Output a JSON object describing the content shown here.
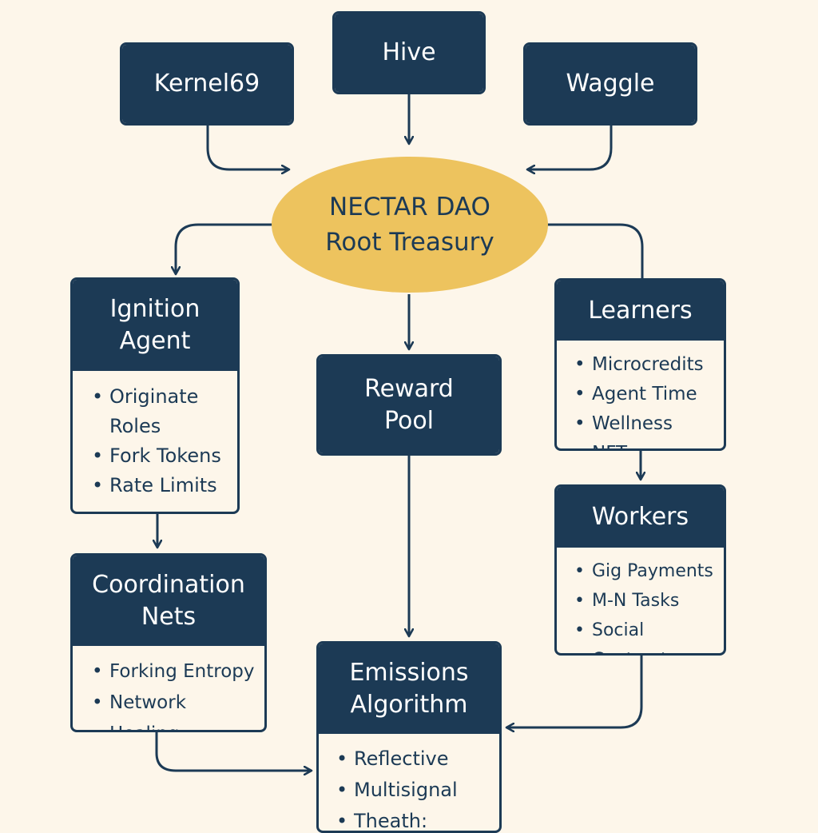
{
  "colors": {
    "navy": "#1c3a55",
    "gold": "#edc35e",
    "background": "#fdf6ea"
  },
  "root": {
    "line1": "NECTAR DAO",
    "line2": "Root Treasury"
  },
  "sources": {
    "kernel": "Kernel69",
    "hive": "Hive",
    "waggle": "Waggle"
  },
  "ignition": {
    "title_line1": "Ignition",
    "title_line2": "Agent",
    "items": [
      "Originate Roles",
      "Fork Tokens",
      "Rate Limits"
    ]
  },
  "reward": {
    "title_line1": "Reward",
    "title_line2": "Pool"
  },
  "learners": {
    "title": "Learners",
    "items": [
      "Microcredits",
      "Agent Time",
      "Wellness NFTs"
    ]
  },
  "workers": {
    "title": "Workers",
    "items": [
      "Gig Payments",
      "M-N Tasks",
      "Social Contracts"
    ]
  },
  "coordination": {
    "title_line1": "Coordination",
    "title_line2": "Nets",
    "items": [
      "Forking Entropy",
      "Network Healing"
    ]
  },
  "emissions": {
    "title_line1": "Emissions",
    "title_line2": "Algorithm",
    "items": [
      "Reflective",
      "Multisignal",
      "Theath: Centured"
    ]
  }
}
